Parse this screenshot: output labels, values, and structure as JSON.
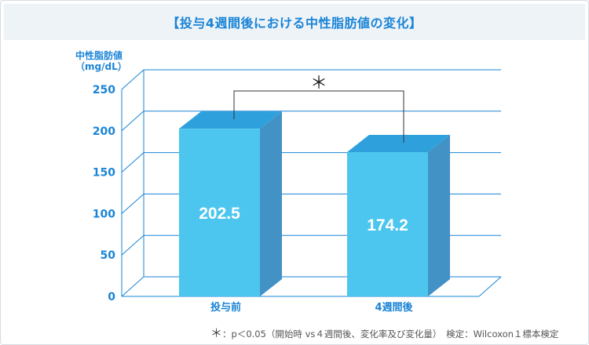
{
  "title": "【投与4週間後における中性脂肪値の変化】",
  "ylabel": {
    "line1": "中性脂肪値",
    "line2": "（mg/dL）"
  },
  "footnote": {
    "star": "＊",
    "text": "：p＜0.05（開始時 vs４週間後、変化率及び変化量）　検定：Wilcoxon１標本検定"
  },
  "significance_mark": "＊",
  "colors": {
    "bar_front": "#4cc6ef",
    "bar_top": "#2ea1dd",
    "bar_side": "#4292c6",
    "axis": "#1a84d6",
    "title": "#1a84d6"
  },
  "chart_data": {
    "type": "bar",
    "title": "【投与4週間後における中性脂肪値の変化】",
    "xlabel": "",
    "ylabel": "中性脂肪値（mg/dL）",
    "categories": [
      "投与前",
      "4週間後"
    ],
    "values": [
      202.5,
      174.2
    ],
    "data_labels": [
      "202.5",
      "174.2"
    ],
    "ylim": [
      0,
      250
    ],
    "yticks": [
      "0",
      "50",
      "100",
      "150",
      "200",
      "250"
    ],
    "grid": true,
    "style": "3d-bar",
    "annotations": [
      "＊"
    ]
  }
}
